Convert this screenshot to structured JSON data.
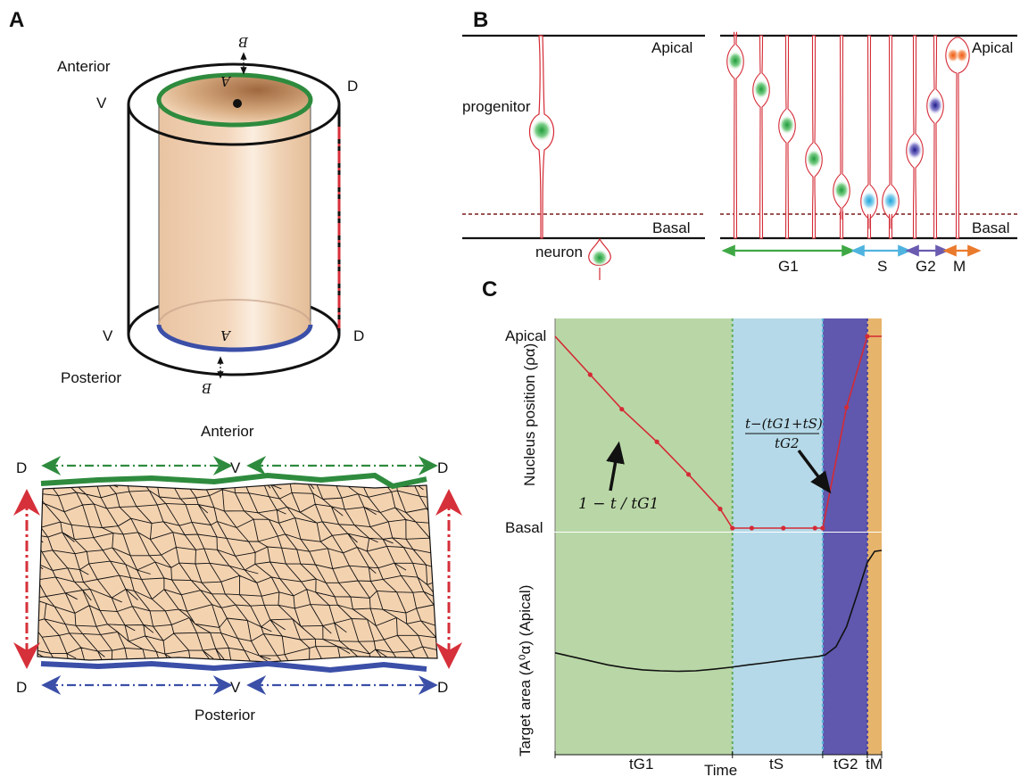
{
  "panels": {
    "a": "A",
    "b": "B",
    "c": "C"
  },
  "panel_a": {
    "cylinder": {
      "anterior": "Anterior",
      "posterior": "Posterior",
      "v_top": "V",
      "d_top": "D",
      "v_bottom": "V",
      "d_bottom": "D",
      "a_top": "A",
      "b_top": "B",
      "a_bottom": "A",
      "b_bottom": "B"
    },
    "sheet": {
      "anterior": "Anterior",
      "posterior": "Posterior",
      "d_tl": "D",
      "v_top": "V",
      "d_tr": "D",
      "d_bl": "D",
      "v_bottom": "V",
      "d_br": "D"
    },
    "colors": {
      "apical_ring": "#2e8b3e",
      "basal_ring": "#3b4fa8",
      "cut_line": "#d6303a",
      "tissue": "#f3d2b0"
    }
  },
  "panel_b": {
    "left": {
      "apical": "Apical",
      "basal": "Basal",
      "progenitor": "progenitor",
      "neuron": "neuron"
    },
    "right": {
      "apical": "Apical",
      "basal": "Basal"
    },
    "phases": {
      "g1": "G1",
      "s": "S",
      "g2": "G2",
      "m": "M"
    },
    "phase_colors": {
      "g1": "#3fa845",
      "s": "#4fb3df",
      "g2": "#6a5bb0",
      "m": "#ea7a2c"
    }
  },
  "panel_c": {
    "top_ylabel": "Nucleus position (ρα)",
    "bottom_ylabel": "Target area (A⁰α) (Apical)",
    "tick_apical": "Apical",
    "tick_basal": "Basal",
    "annotation_g1": "1 − t / tG1",
    "annotation_g2_num": "t−(tG1+tS)",
    "annotation_g2_den": "tG2",
    "xlabel": "Time",
    "phase_ticks": [
      "tG1",
      "tS",
      "tG2",
      "tM"
    ],
    "phase_colors": [
      "#b9d7a6",
      "#b5d9e8",
      "#5f58ae",
      "#e7b46c"
    ]
  },
  "chart_data": [
    {
      "type": "line",
      "title": "",
      "xlabel": "",
      "ylabel": "Nucleus position (ρα)",
      "phase_bounds": [
        0,
        0.505,
        0.762,
        0.889,
        0.93
      ],
      "phases": [
        "tG1",
        "tS",
        "tG2",
        "tM"
      ],
      "y_ticks": [
        "Basal",
        "Apical"
      ],
      "ylim": [
        0,
        1
      ],
      "series": [
        {
          "values_x": [
            0,
            0.1,
            0.19,
            0.29,
            0.38,
            0.47,
            0.505,
            0.56,
            0.65,
            0.74,
            0.762,
            0.83,
            0.889,
            0.93
          ],
          "values_y": [
            1,
            0.8,
            0.62,
            0.45,
            0.28,
            0.1,
            0,
            0,
            0,
            0,
            0,
            0.63,
            1,
            1
          ],
          "color": "#d42a35"
        }
      ]
    },
    {
      "type": "line",
      "title": "",
      "xlabel": "Time",
      "ylabel": "Target area (A⁰α) (Apical)",
      "phase_bounds": [
        0,
        0.505,
        0.762,
        0.889,
        0.93
      ],
      "phases": [
        "tG1",
        "tS",
        "tG2",
        "tM"
      ],
      "ylim": [
        0,
        1
      ],
      "series": [
        {
          "values_x": [
            0,
            0.05,
            0.1,
            0.15,
            0.2,
            0.25,
            0.3,
            0.35,
            0.4,
            0.45,
            0.5,
            0.55,
            0.6,
            0.65,
            0.7,
            0.75,
            0.77,
            0.8,
            0.83,
            0.86,
            0.889,
            0.91,
            0.93
          ],
          "values_y": [
            0.49,
            0.47,
            0.45,
            0.43,
            0.415,
            0.405,
            0.4,
            0.398,
            0.4,
            0.408,
            0.418,
            0.43,
            0.44,
            0.452,
            0.462,
            0.472,
            0.48,
            0.52,
            0.62,
            0.78,
            0.94,
            0.995,
            1.0
          ],
          "color": "#111111"
        }
      ]
    }
  ]
}
